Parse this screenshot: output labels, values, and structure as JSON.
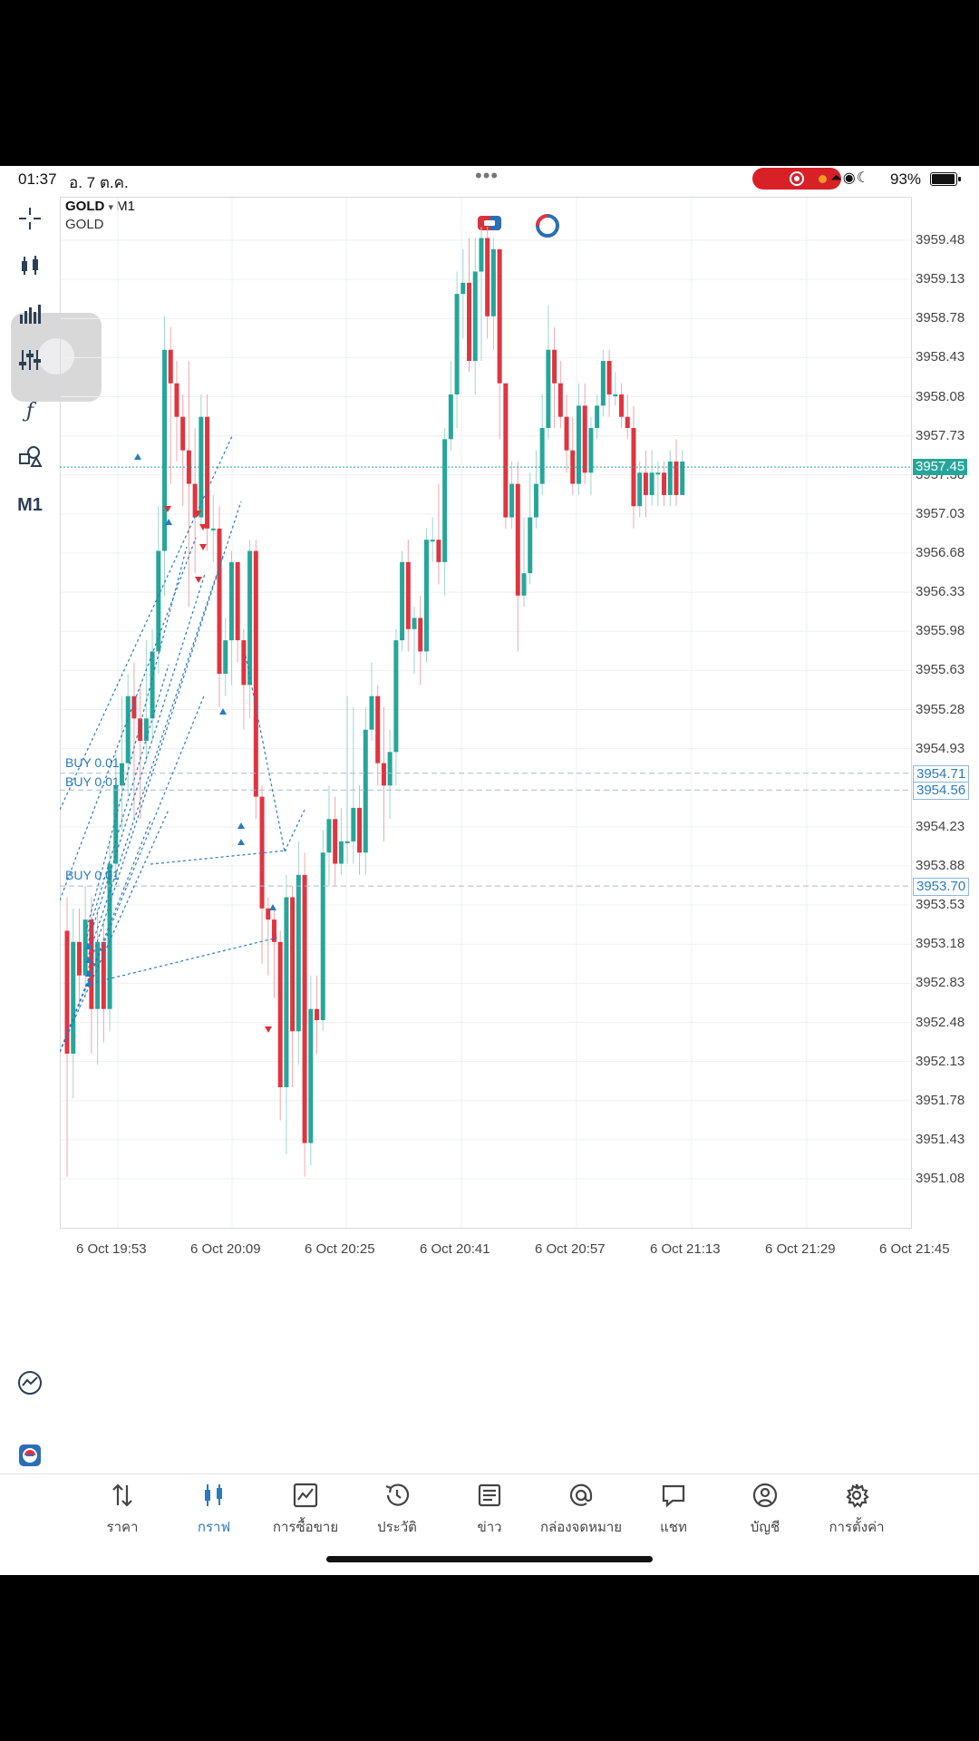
{
  "status_bar": {
    "time": "01:37",
    "date": "อ. 7 ต.ค.",
    "battery": "93%"
  },
  "chart": {
    "symbol": "GOLD",
    "timeframe": "M1",
    "description": "GOLD",
    "toolbar_timeframe": "M1",
    "current_price": "3957.45",
    "buy_labels": [
      "BUY 0.01",
      "BUY 0.01",
      "BUY 0.01"
    ],
    "order_prices": [
      "3954.71",
      "3954.56",
      "3953.70"
    ],
    "price_axis": [
      "3959.48",
      "3959.13",
      "3958.78",
      "3958.43",
      "3958.08",
      "3957.73",
      "3957.38",
      "3957.03",
      "3956.68",
      "3956.33",
      "3955.98",
      "3955.63",
      "3955.28",
      "3954.93",
      "3954.23",
      "3953.88",
      "3953.53",
      "3953.18",
      "3952.83",
      "3952.48",
      "3952.13",
      "3951.78",
      "3951.43",
      "3951.08"
    ],
    "time_axis": [
      "6 Oct 19:53",
      "6 Oct 20:09",
      "6 Oct 20:25",
      "6 Oct 20:41",
      "6 Oct 20:57",
      "6 Oct 21:13",
      "6 Oct 21:29",
      "6 Oct 21:45"
    ],
    "colors": {
      "bull": "#26a69a",
      "bear": "#e0343f",
      "trade_line": "#2a7abf"
    },
    "candles": [
      [
        3953.3,
        3952.2,
        3953.6,
        3951.1
      ],
      [
        3952.2,
        3953.2,
        3953.5,
        3951.8
      ],
      [
        3953.2,
        3952.9,
        3953.5,
        3952.6
      ],
      [
        3952.9,
        3953.4,
        3953.7,
        3952.7
      ],
      [
        3953.4,
        3952.6,
        3953.6,
        3952.2
      ],
      [
        3952.6,
        3953.2,
        3953.5,
        3952.1
      ],
      [
        3953.2,
        3952.6,
        3953.4,
        3952.3
      ],
      [
        3952.6,
        3953.9,
        3954.1,
        3952.4
      ],
      [
        3953.9,
        3954.6,
        3954.9,
        3953.8
      ],
      [
        3954.6,
        3954.8,
        3955.4,
        3954.2
      ],
      [
        3954.8,
        3955.4,
        3955.6,
        3954.5
      ],
      [
        3955.4,
        3955.2,
        3955.7,
        3954.3
      ],
      [
        3955.2,
        3955.0,
        3955.5,
        3954.3
      ],
      [
        3955.0,
        3955.2,
        3955.9,
        3954.8
      ],
      [
        3955.2,
        3955.8,
        3956.0,
        3955.0
      ],
      [
        3955.8,
        3956.7,
        3957.1,
        3955.6
      ],
      [
        3956.7,
        3958.5,
        3958.8,
        3956.3
      ],
      [
        3958.5,
        3958.2,
        3958.7,
        3957.3
      ],
      [
        3958.2,
        3957.9,
        3958.4,
        3957.5
      ],
      [
        3957.9,
        3957.6,
        3958.1,
        3957.1
      ],
      [
        3957.6,
        3957.3,
        3958.4,
        3956.2
      ],
      [
        3957.3,
        3957.0,
        3957.8,
        3956.5
      ],
      [
        3957.0,
        3957.9,
        3958.1,
        3956.9
      ],
      [
        3957.9,
        3956.9,
        3958.1,
        3956.7
      ],
      [
        3956.9,
        3956.9,
        3957.2,
        3956.6
      ],
      [
        3956.9,
        3955.6,
        3957.1,
        3955.3
      ],
      [
        3955.6,
        3955.9,
        3956.1,
        3955.4
      ],
      [
        3955.9,
        3956.6,
        3956.7,
        3955.5
      ],
      [
        3956.6,
        3955.9,
        3956.6,
        3955.7
      ],
      [
        3955.9,
        3955.5,
        3956.0,
        3955.1
      ],
      [
        3955.5,
        3956.7,
        3956.8,
        3955.2
      ],
      [
        3956.7,
        3954.5,
        3956.8,
        3954.3
      ],
      [
        3954.5,
        3953.5,
        3954.6,
        3953.0
      ],
      [
        3953.5,
        3953.4,
        3953.6,
        3952.9
      ],
      [
        3953.4,
        3953.2,
        3953.5,
        3952.7
      ],
      [
        3953.2,
        3951.9,
        3953.3,
        3951.6
      ],
      [
        3951.9,
        3953.6,
        3953.8,
        3951.3
      ],
      [
        3953.6,
        3952.4,
        3953.7,
        3951.9
      ],
      [
        3952.4,
        3953.8,
        3954.1,
        3952.1
      ],
      [
        3953.8,
        3951.4,
        3954.0,
        3951.1
      ],
      [
        3951.4,
        3952.6,
        3952.9,
        3951.2
      ],
      [
        3952.6,
        3952.5,
        3952.9,
        3952.2
      ],
      [
        3952.5,
        3954.0,
        3954.2,
        3952.4
      ],
      [
        3954.0,
        3954.3,
        3954.6,
        3953.7
      ],
      [
        3954.3,
        3953.9,
        3954.5,
        3953.7
      ],
      [
        3953.9,
        3954.1,
        3954.4,
        3953.8
      ],
      [
        3954.1,
        3954.1,
        3955.4,
        3953.9
      ],
      [
        3954.1,
        3954.4,
        3955.3,
        3953.9
      ],
      [
        3954.4,
        3954.0,
        3954.6,
        3953.8
      ],
      [
        3954.0,
        3955.1,
        3955.3,
        3953.8
      ],
      [
        3955.1,
        3955.4,
        3955.7,
        3955.0
      ],
      [
        3955.4,
        3954.8,
        3955.5,
        3954.6
      ],
      [
        3954.8,
        3954.6,
        3955.3,
        3954.1
      ],
      [
        3954.6,
        3954.9,
        3955.1,
        3954.3
      ],
      [
        3954.9,
        3955.9,
        3956.0,
        3954.6
      ],
      [
        3955.9,
        3956.6,
        3956.7,
        3955.8
      ],
      [
        3956.6,
        3956.0,
        3956.8,
        3955.8
      ],
      [
        3956.0,
        3956.1,
        3956.2,
        3955.6
      ],
      [
        3956.1,
        3955.8,
        3956.3,
        3955.5
      ],
      [
        3955.8,
        3956.8,
        3956.9,
        3955.7
      ],
      [
        3956.8,
        3956.8,
        3957.0,
        3956.6
      ],
      [
        3956.8,
        3956.6,
        3957.3,
        3956.4
      ],
      [
        3956.6,
        3957.7,
        3957.8,
        3956.3
      ],
      [
        3957.7,
        3958.1,
        3958.4,
        3957.6
      ],
      [
        3958.1,
        3959.0,
        3959.2,
        3957.8
      ],
      [
        3959.0,
        3959.1,
        3959.4,
        3958.6
      ],
      [
        3959.1,
        3958.4,
        3959.5,
        3958.3
      ],
      [
        3958.4,
        3959.2,
        3959.5,
        3958.1
      ],
      [
        3959.2,
        3959.5,
        3959.6,
        3958.4
      ],
      [
        3959.5,
        3958.8,
        3959.6,
        3958.6
      ],
      [
        3958.8,
        3959.4,
        3959.5,
        3958.5
      ],
      [
        3959.4,
        3958.2,
        3959.4,
        3957.7
      ],
      [
        3958.2,
        3957.0,
        3958.2,
        3956.9
      ],
      [
        3957.0,
        3957.3,
        3957.5,
        3956.9
      ],
      [
        3957.3,
        3956.3,
        3957.5,
        3955.8
      ],
      [
        3956.3,
        3956.5,
        3957.0,
        3956.2
      ],
      [
        3956.5,
        3957.0,
        3957.4,
        3956.4
      ],
      [
        3957.0,
        3957.3,
        3957.6,
        3956.9
      ],
      [
        3957.3,
        3957.8,
        3958.1,
        3957.2
      ],
      [
        3957.8,
        3958.5,
        3958.9,
        3957.7
      ],
      [
        3958.5,
        3958.2,
        3958.7,
        3957.8
      ],
      [
        3958.2,
        3957.9,
        3958.4,
        3957.8
      ],
      [
        3957.9,
        3957.6,
        3958.1,
        3957.4
      ],
      [
        3957.6,
        3957.3,
        3957.9,
        3957.2
      ],
      [
        3957.3,
        3958.0,
        3958.2,
        3957.2
      ],
      [
        3958.0,
        3957.4,
        3958.2,
        3957.3
      ],
      [
        3957.4,
        3957.8,
        3957.9,
        3957.2
      ],
      [
        3957.8,
        3958.0,
        3958.1,
        3957.7
      ],
      [
        3958.0,
        3958.4,
        3958.5,
        3957.9
      ],
      [
        3958.4,
        3958.1,
        3958.5,
        3957.9
      ],
      [
        3958.1,
        3958.1,
        3958.3,
        3958.0
      ],
      [
        3958.1,
        3957.9,
        3958.2,
        3957.8
      ],
      [
        3957.9,
        3957.8,
        3958.1,
        3957.7
      ],
      [
        3957.8,
        3957.1,
        3958.0,
        3956.9
      ],
      [
        3957.1,
        3957.4,
        3957.5,
        3957.0
      ],
      [
        3957.4,
        3957.2,
        3957.6,
        3957.0
      ],
      [
        3957.2,
        3957.4,
        3957.6,
        3957.1
      ],
      [
        3957.4,
        3957.4,
        3957.5,
        3957.1
      ],
      [
        3957.4,
        3957.2,
        3957.5,
        3957.1
      ],
      [
        3957.2,
        3957.5,
        3957.6,
        3957.1
      ],
      [
        3957.5,
        3957.2,
        3957.7,
        3957.1
      ],
      [
        3957.2,
        3957.5,
        3957.6,
        3957.2
      ]
    ]
  },
  "nav": [
    {
      "label": "ราคา",
      "icon": "arrows-updown-icon"
    },
    {
      "label": "กราฟ",
      "icon": "candles-icon"
    },
    {
      "label": "การซื้อขาย",
      "icon": "trade-chart-icon"
    },
    {
      "label": "ประวัติ",
      "icon": "history-icon"
    },
    {
      "label": "ข่าว",
      "icon": "news-icon"
    },
    {
      "label": "กล่องจดหมาย",
      "icon": "at-icon"
    },
    {
      "label": "แชท",
      "icon": "chat-icon"
    },
    {
      "label": "บัญชี",
      "icon": "account-icon"
    },
    {
      "label": "การตั้งค่า",
      "icon": "gear-icon"
    }
  ]
}
